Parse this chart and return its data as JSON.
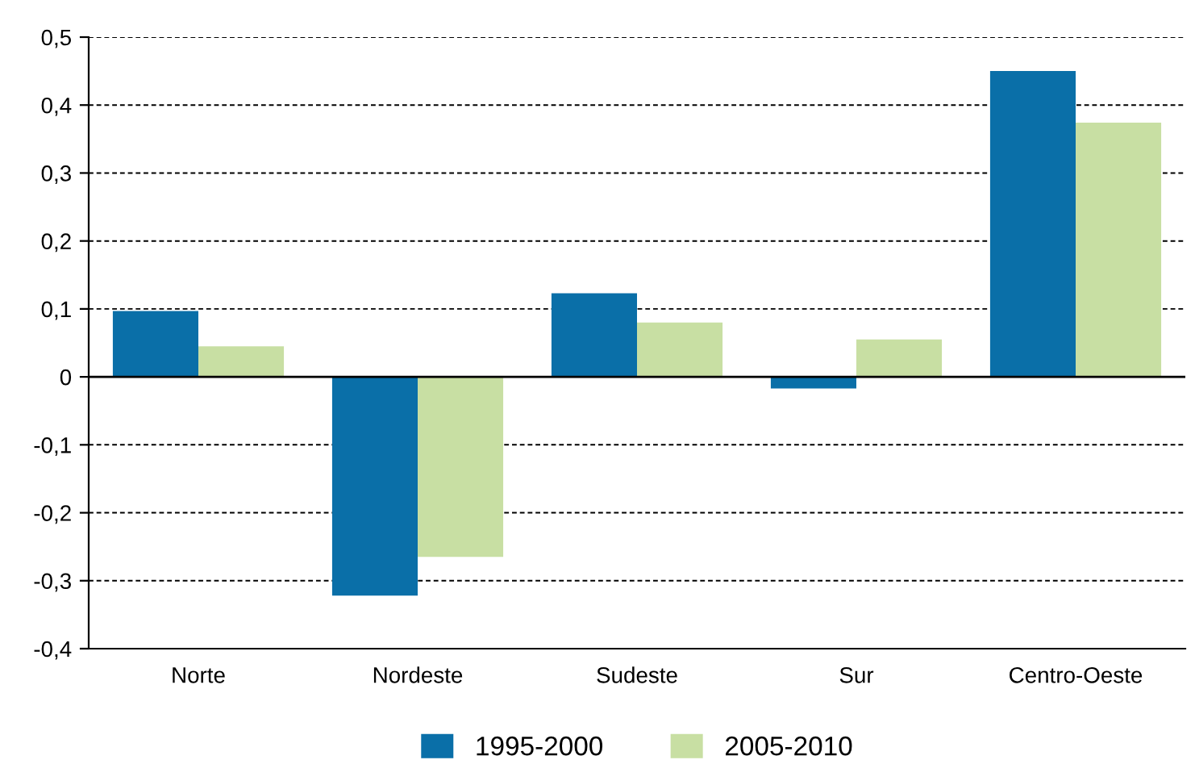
{
  "chart_data": {
    "type": "bar",
    "categories": [
      "Norte",
      "Nordeste",
      "Sudeste",
      "Sur",
      "Centro-Oeste"
    ],
    "series": [
      {
        "name": "1995-2000",
        "color": "#0a6fa8",
        "values": [
          0.097,
          -0.322,
          0.123,
          -0.017,
          0.45
        ]
      },
      {
        "name": "2005-2010",
        "color": "#c8dfa3",
        "values": [
          0.045,
          -0.265,
          0.08,
          0.055,
          0.374
        ]
      }
    ],
    "ylim": [
      -0.4,
      0.5
    ],
    "yticks": [
      {
        "value": -0.4,
        "label": "-0,4"
      },
      {
        "value": -0.3,
        "label": "-0,3"
      },
      {
        "value": -0.2,
        "label": "-0,2"
      },
      {
        "value": -0.1,
        "label": "-0,1"
      },
      {
        "value": 0,
        "label": "0"
      },
      {
        "value": 0.1,
        "label": "0,1"
      },
      {
        "value": 0.2,
        "label": "0,2"
      },
      {
        "value": 0.3,
        "label": "0,3"
      },
      {
        "value": 0.4,
        "label": "0,4"
      },
      {
        "value": 0.5,
        "label": "0,5"
      }
    ],
    "grid": "y",
    "legend": "bottom"
  }
}
